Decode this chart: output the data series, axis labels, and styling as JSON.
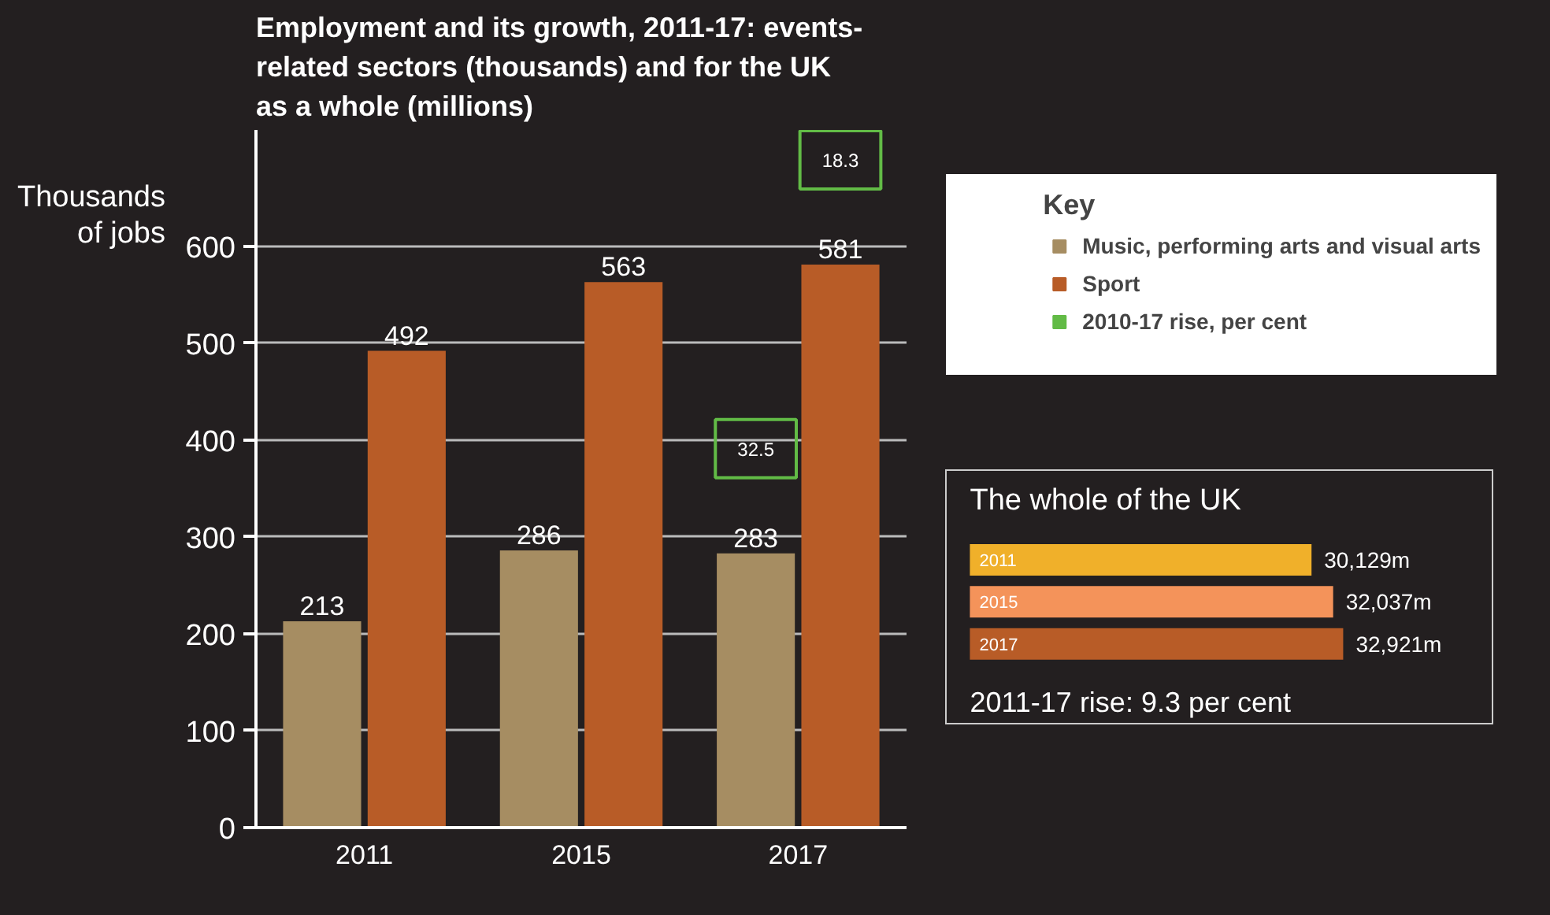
{
  "chart_data": [
    {
      "type": "bar",
      "title": "Employment and its growth, 2011-17: events-related sectors (thousands) and for the UK as a whole (millions)",
      "ylabel": "Thousands of jobs",
      "legend_title": "Key",
      "legend": "right",
      "categories": [
        "2011",
        "2015",
        "2017"
      ],
      "ylim": [
        0,
        720
      ],
      "yticks": [
        0,
        100,
        200,
        300,
        400,
        500,
        600
      ],
      "grid": "y",
      "data_labels": true,
      "series": [
        {
          "name": "Music, performing arts and visual arts",
          "color": "#a68d62",
          "values": [
            213,
            286,
            283
          ]
        },
        {
          "name": "Sport",
          "color": "#b85c27",
          "values": [
            492,
            563,
            581
          ]
        },
        {
          "name": "2010-17 rise, per cent",
          "color": "#62bb46",
          "type": "other",
          "values": [
            null,
            null,
            null
          ]
        }
      ],
      "annotations": [
        "32.5",
        "18.3"
      ]
    },
    {
      "type": "bar",
      "orientation": "horizontal",
      "title": "The whole of the UK",
      "categories": [
        "2011",
        "2015",
        "2017"
      ],
      "values": [
        30129,
        32037,
        32921
      ],
      "colors": [
        "#f0b02a",
        "#f4935a",
        "#b85c27"
      ],
      "value_labels": [
        "30,129m",
        "32,037m",
        "32,921m"
      ],
      "annotations": [
        "2011-17 rise: 9.3 per cent"
      ]
    }
  ]
}
